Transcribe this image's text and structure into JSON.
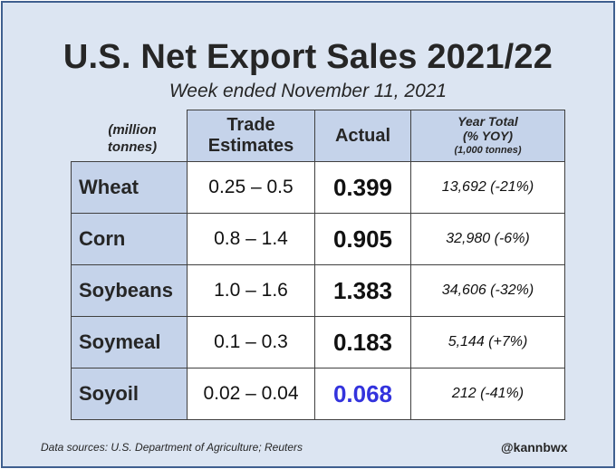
{
  "title": "U.S. Net Export Sales 2021/22",
  "subtitle": "Week ended November 11, 2021",
  "units_label": "(million tonnes)",
  "headers": {
    "trade": "Trade Estimates",
    "actual": "Actual",
    "year_total": "Year Total",
    "year_total_sub": "(% YOY)",
    "year_total_units": "(1,000 tonnes)"
  },
  "rows": [
    {
      "commodity": "Wheat",
      "estimate": "0.25 – 0.5",
      "actual": "0.399",
      "year_total": "13,692 (-21%)"
    },
    {
      "commodity": "Corn",
      "estimate": "0.8 – 1.4",
      "actual": "0.905",
      "year_total": "32,980 (-6%)"
    },
    {
      "commodity": "Soybeans",
      "estimate": "1.0 – 1.6",
      "actual": "1.383",
      "year_total": "34,606 (-32%)"
    },
    {
      "commodity": "Soymeal",
      "estimate": "0.1 – 0.3",
      "actual": "0.183",
      "year_total": "5,144 (+7%)"
    },
    {
      "commodity": "Soyoil",
      "estimate": "0.02 – 0.04",
      "actual": "0.068",
      "year_total": "212 (-41%)"
    }
  ],
  "colors": {
    "frame_bg": "#dce5f2",
    "header_bg": "#c5d3ea",
    "highlight_below_estimate": "#3333dd",
    "default_text": "#111111"
  },
  "footer": {
    "source": "Data sources: U.S. Department of Agriculture; Reuters",
    "handle": "@kannbwx"
  }
}
